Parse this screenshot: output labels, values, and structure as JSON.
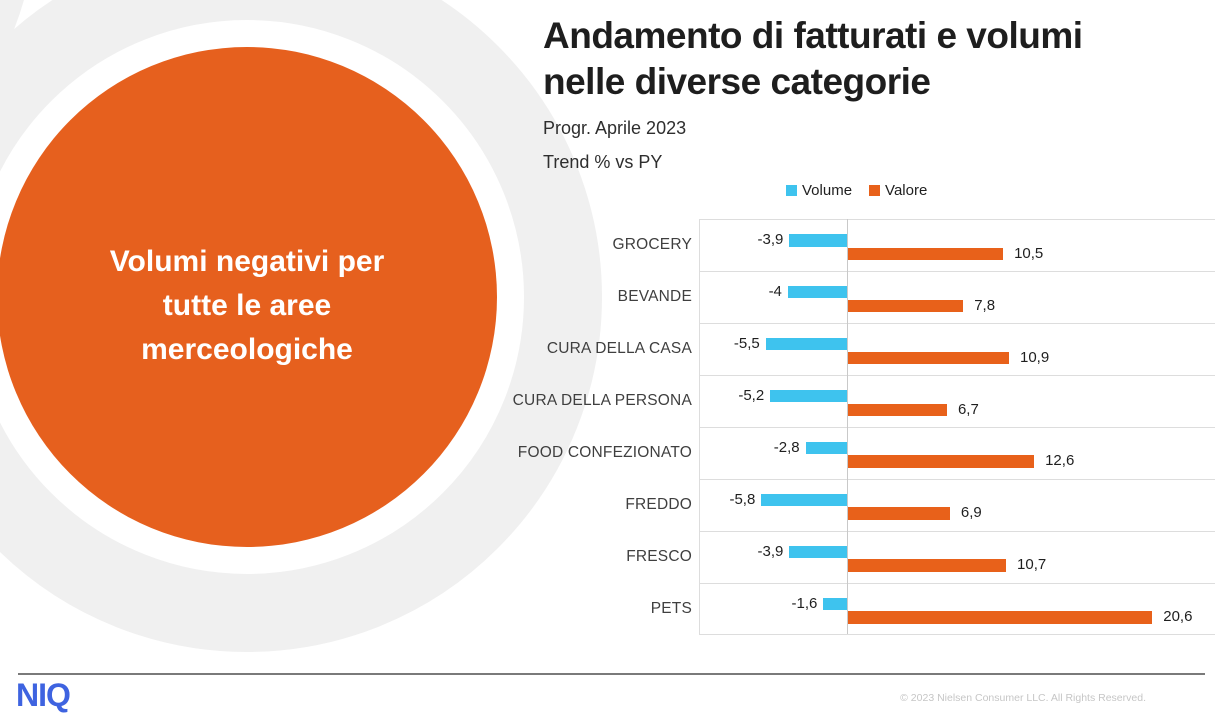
{
  "header": {
    "title_lines": [
      "Andamento di fatturati e volumi",
      "nelle diverse categorie"
    ],
    "subtitle_period": "Progr. Aprile 2023",
    "subtitle_metric": "Trend % vs PY"
  },
  "hero": {
    "lines": [
      "Volumi negativi per",
      "tutte le aree",
      "merceologiche"
    ],
    "circle_color": "#E6601E",
    "ring_color": "#F0F0F0",
    "text_color": "#FFFFFF"
  },
  "chart_data": {
    "type": "bar",
    "orientation": "horizontal",
    "title": "Andamento di fatturati e volumi nelle diverse categorie",
    "subtitle": "Progr. Aprile 2023 — Trend % vs PY",
    "categories": [
      "GROCERY",
      "BEVANDE",
      "CURA DELLA CASA",
      "CURA DELLA PERSONA",
      "FOOD CONFEZIONATO",
      "FREDDO",
      "FRESCO",
      "PETS"
    ],
    "series": [
      {
        "name": "Volume",
        "color": "#3EC3EE",
        "values": [
          -3.9,
          -4,
          -5.5,
          -5.2,
          -2.8,
          -5.8,
          -3.9,
          -1.6
        ],
        "labels": [
          "-3,9",
          "-4",
          "-5,5",
          "-5,2",
          "-2,8",
          "-5,8",
          "-3,9",
          "-1,6"
        ]
      },
      {
        "name": "Valore",
        "color": "#E8611A",
        "values": [
          10.5,
          7.8,
          10.9,
          6.7,
          12.6,
          6.9,
          10.7,
          20.6
        ],
        "labels": [
          "10,5",
          "7,8",
          "10,9",
          "6,7",
          "12,6",
          "6,9",
          "10,7",
          "20,6"
        ]
      }
    ],
    "xlim": [
      -10,
      25
    ],
    "legend_position": "top",
    "grid": "horizontal row separators, left border and zero axis only",
    "value_labels": "shown at bar ends, Italian decimal comma"
  },
  "footer": {
    "logo_text": "NIQ",
    "logo_color": "#3E63E0",
    "copyright": "© 2023 Nielsen Consumer LLC. All Rights Reserved."
  }
}
